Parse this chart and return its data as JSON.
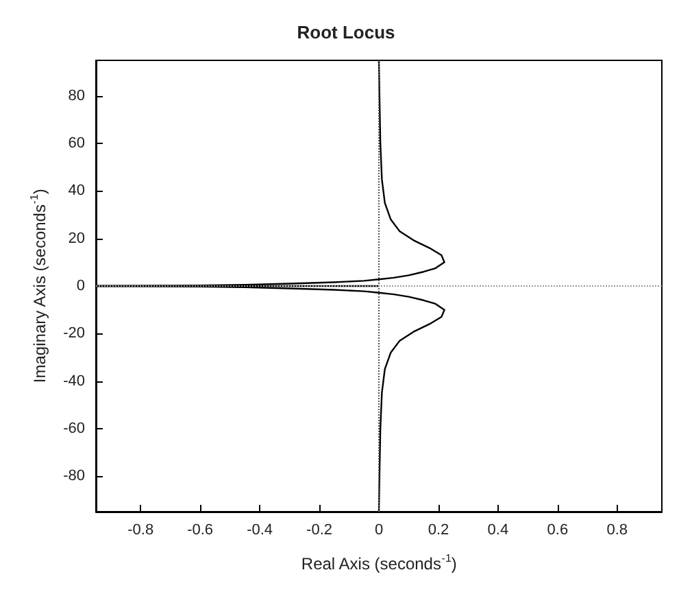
{
  "chart_data": {
    "type": "line",
    "title": "Root Locus",
    "xlabel": "Real Axis (seconds$^{-1}$)",
    "ylabel": "Imaginary Axis (seconds$^{-1}$)",
    "xlim": [
      -0.95,
      0.95
    ],
    "xticks": [
      -0.8,
      -0.6,
      -0.4,
      -0.2,
      0,
      0.2,
      0.4,
      0.6,
      0.8
    ],
    "ylim": [
      -95,
      95
    ],
    "yticks": [
      -80,
      -60,
      -40,
      -20,
      0,
      20,
      40,
      60,
      80
    ],
    "grid": false,
    "marker": "none",
    "line_style": "solid",
    "series": [
      {
        "color": "#000000",
        "x": [
          -0.95,
          -0.6,
          -0.45,
          -0.3,
          -0.15,
          -0.05,
          0,
          0.05,
          0.1,
          0.15,
          0.19,
          0.22,
          0.21,
          0.17,
          0.12,
          0.07,
          0.04,
          0.02,
          0.01,
          0.005,
          0.002,
          0
        ],
        "values": [
          0,
          0.2,
          0.5,
          1,
          1.6,
          2.2,
          2.8,
          3.5,
          4.5,
          6,
          7.5,
          10,
          13,
          16,
          19,
          23,
          28,
          35,
          45,
          60,
          80,
          95
        ]
      },
      {
        "color": "#000000",
        "x": [
          -0.95,
          -0.6,
          -0.45,
          -0.3,
          -0.15,
          -0.05,
          0,
          0.05,
          0.1,
          0.15,
          0.19,
          0.22,
          0.21,
          0.17,
          0.12,
          0.07,
          0.04,
          0.02,
          0.01,
          0.005,
          0.002,
          0
        ],
        "values": [
          0,
          -0.2,
          -0.5,
          -1,
          -1.6,
          -2.2,
          -2.8,
          -3.5,
          -4.5,
          -6,
          -7.5,
          -10,
          -13,
          -16,
          -19,
          -23,
          -28,
          -35,
          -45,
          -60,
          -80,
          -95
        ]
      },
      {
        "color": "#000000",
        "x": [
          -0.95,
          0
        ],
        "values": [
          0,
          0
        ]
      }
    ],
    "ref_lines": [
      {
        "axis": "x",
        "value": 0,
        "color": "#555555",
        "line_style": "dotted"
      },
      {
        "axis": "y",
        "value": 0,
        "color": "#999999",
        "line_style": "dotted"
      }
    ]
  }
}
